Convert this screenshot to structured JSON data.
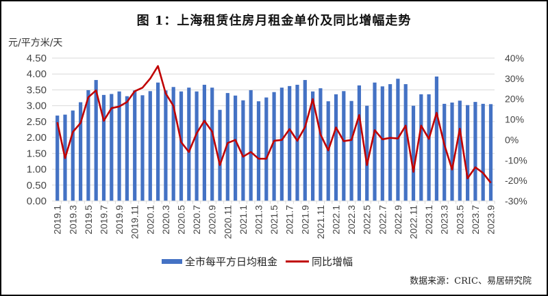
{
  "chart_data": {
    "type": "bar+line",
    "title": "图 1：上海租赁住房月租金单价及同比增幅走势",
    "ylabel": "元/平方米/天",
    "ylabel_right": "",
    "xlabel": "",
    "ylim": [
      0,
      4.5
    ],
    "ylim_right": [
      -30,
      40
    ],
    "y_ticks": [
      "0.00",
      "0.50",
      "1.00",
      "1.50",
      "2.00",
      "2.50",
      "3.00",
      "3.50",
      "4.00",
      "4.50"
    ],
    "y_right_ticks": [
      "-30%",
      "-20%",
      "-10%",
      "0%",
      "10%",
      "20%",
      "30%",
      "40%"
    ],
    "grid": true,
    "legend_position": "bottom",
    "categories": [
      "2019.1",
      "2019.2",
      "2019.3",
      "2019.4",
      "2019.5",
      "2019.6",
      "2019.7",
      "2019.8",
      "2019.9",
      "2019.10",
      "2019.11",
      "2019.12",
      "2020.1",
      "2020.2",
      "2020.3",
      "2020.4",
      "2020.5",
      "2020.6",
      "2020.7",
      "2020.8",
      "2020.9",
      "2020.10",
      "2020.11",
      "2020.12",
      "2021.1",
      "2021.2",
      "2021.3",
      "2021.4",
      "2021.5",
      "2021.6",
      "2021.7",
      "2021.8",
      "2021.9",
      "2021.10",
      "2021.11",
      "2021.12",
      "2022.1",
      "2022.2",
      "2022.3",
      "2022.4",
      "2022.5",
      "2022.6",
      "2022.7",
      "2022.8",
      "2022.9",
      "2022.10",
      "2022.11",
      "2022.12",
      "2023.1",
      "2023.2",
      "2023.3",
      "2023.4",
      "2023.5",
      "2023.6",
      "2023.7",
      "2023.8",
      "2023.9"
    ],
    "series": [
      {
        "name": "全市每平方日均租金",
        "type": "bar",
        "axis": "left",
        "color": "#4472c4",
        "values": [
          2.69,
          2.72,
          2.85,
          3.11,
          3.49,
          3.81,
          3.34,
          3.37,
          3.45,
          3.3,
          3.48,
          3.33,
          3.46,
          3.73,
          3.48,
          3.59,
          3.45,
          3.57,
          3.45,
          3.66,
          3.57,
          2.87,
          3.4,
          3.32,
          3.17,
          3.49,
          3.14,
          3.26,
          3.43,
          3.57,
          3.62,
          3.66,
          3.81,
          3.45,
          3.55,
          3.14,
          3.36,
          3.46,
          3.15,
          3.64,
          3.0,
          3.73,
          3.61,
          3.68,
          3.85,
          3.68,
          3.0,
          3.36,
          3.36,
          3.92,
          3.06,
          3.1,
          3.16,
          3.02,
          3.12,
          3.06,
          3.05
        ]
      },
      {
        "name": "同比增幅",
        "type": "line",
        "axis": "right",
        "unit": "%",
        "color": "#c00000",
        "values": [
          8.6,
          -9.0,
          3.8,
          8.2,
          20.8,
          24.2,
          9.3,
          15.5,
          16.3,
          18.5,
          23.8,
          25.5,
          30.0,
          36.1,
          22.7,
          16.6,
          -1.2,
          -6.0,
          3.2,
          9.3,
          4.0,
          -12.4,
          -1.6,
          -0.1,
          -8.3,
          -6.0,
          -9.3,
          -9.3,
          -0.5,
          -0.1,
          5.2,
          -0.5,
          6.2,
          19.9,
          2.6,
          -5.2,
          6.0,
          -0.7,
          -0.1,
          12.1,
          -12.4,
          4.7,
          0.2,
          0.9,
          0.6,
          6.9,
          -15.7,
          6.9,
          0.4,
          13.2,
          -2.4,
          -14.6,
          5.4,
          -18.9,
          -13.5,
          -16.3,
          -21.1
        ]
      }
    ],
    "source": "数据来源：CRIC、易居研究院"
  },
  "header": {
    "title": "图 1：上海租赁住房月租金单价及同比增幅走势",
    "unit_label": "元/平方米/天"
  },
  "legend": {
    "bar_label": "全市每平方日均租金",
    "line_label": "同比增幅"
  },
  "footer": {
    "source": "数据来源：CRIC、易居研究院"
  }
}
